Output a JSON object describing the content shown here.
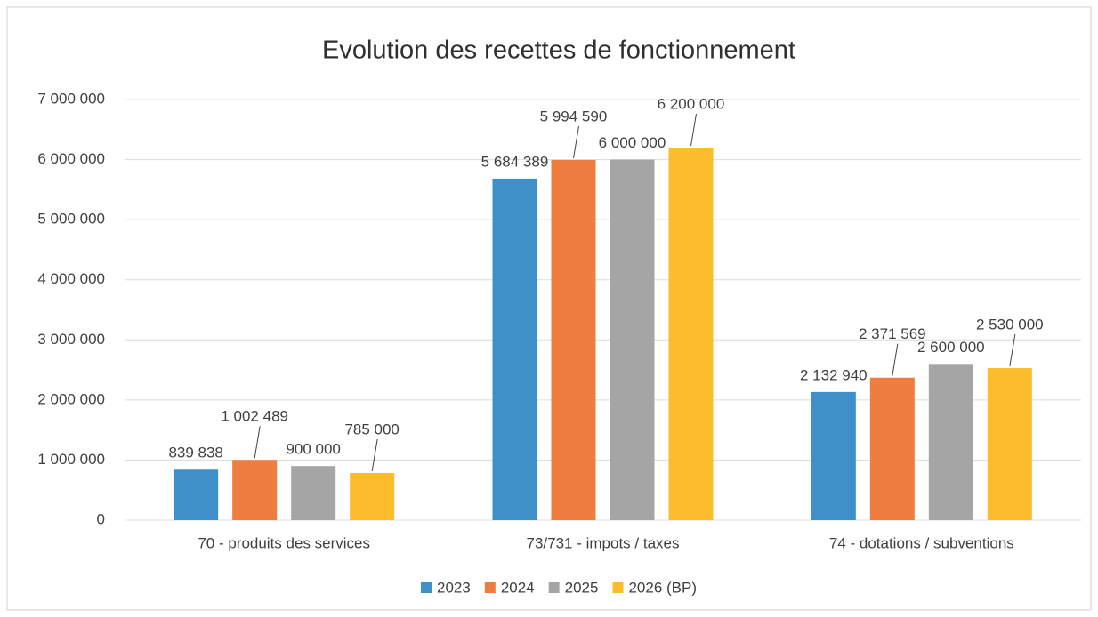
{
  "chart_data": {
    "type": "bar",
    "title": "Evolution des recettes de fonctionnement",
    "categories": [
      "70 - produits des services",
      "73/731 - impots / taxes",
      "74 - dotations / subventions"
    ],
    "series": [
      {
        "name": "2023",
        "color": "#3f8fc9",
        "values": [
          839838,
          5684389,
          2132940
        ],
        "value_labels": [
          "839 838",
          "5 684 389",
          "2 132 940"
        ]
      },
      {
        "name": "2024",
        "color": "#ee7d3f",
        "values": [
          1002489,
          5994590,
          2371569
        ],
        "value_labels": [
          "1 002 489",
          "5 994 590",
          "2 371 569"
        ]
      },
      {
        "name": "2025",
        "color": "#a5a5a5",
        "values": [
          900000,
          6000000,
          2600000
        ],
        "value_labels": [
          "900 000",
          "6 000 000",
          "2 600 000"
        ]
      },
      {
        "name": "2026 (BP)",
        "color": "#fbbd2c",
        "values": [
          785000,
          6200000,
          2530000
        ],
        "value_labels": [
          "785 000",
          "6 200 000",
          "2 530 000"
        ]
      }
    ],
    "ylim": [
      0,
      7000000
    ],
    "yticks": [
      0,
      {
        "value": 1000000,
        "label": "1 000 000"
      },
      {
        "value": 2000000,
        "label": "2 000 000"
      },
      {
        "value": 3000000,
        "label": "3 000 000"
      },
      {
        "value": 4000000,
        "label": "4 000 000"
      },
      {
        "value": 5000000,
        "label": "5 000 000"
      },
      {
        "value": 6000000,
        "label": "6 000 000"
      },
      {
        "value": 7000000,
        "label": "7 000 000"
      }
    ],
    "grid": true,
    "legend": "bottom"
  }
}
